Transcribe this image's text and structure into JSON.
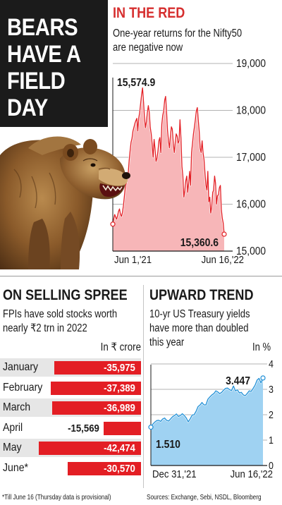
{
  "headline": {
    "lines": [
      "BEARS",
      "HAVE A",
      "FIELD",
      "DAY"
    ]
  },
  "nifty": {
    "title": "IN THE RED",
    "subtitle_lines": [
      "One-year returns for the Nifty50",
      "are negative now"
    ],
    "colors": {
      "title": "#d62f2f",
      "line": "#e31e24",
      "fill": "#f7b6b8"
    }
  },
  "fpi": {
    "title": "ON SELLING SPREE",
    "subtitle_lines": [
      "FPIs have sold stocks worth",
      "nearly ₹2 trn in 2022"
    ],
    "unit": "In ₹ crore",
    "colors": {
      "bar": "#e31e24",
      "shade": "#e6e6e6"
    }
  },
  "yields": {
    "title": "UPWARD TREND",
    "subtitle_lines": [
      "10-yr US Treasury yields",
      "have more than doubled",
      "this year"
    ],
    "unit": "In %",
    "colors": {
      "line": "#1f8fd6",
      "fill": "#9fd2f2"
    }
  },
  "footer": {
    "note": "*Till June 16 (Thursday data is provisional)",
    "sources": "Sources: Exchange, Sebi, NSDL, Bloomberg"
  },
  "chart_data": [
    {
      "id": "nifty",
      "type": "area",
      "title": "IN THE RED",
      "subtitle": "One-year returns for the Nifty50 are negative now",
      "x_tick_labels": [
        "Jun 1,'21",
        "Jun 16,'22"
      ],
      "y_ticks": [
        15000,
        16000,
        17000,
        18000,
        19000
      ],
      "y_tick_labels": [
        "15,000",
        "16,000",
        "17,000",
        "18,000",
        "19,000"
      ],
      "ylim": [
        15000,
        19000
      ],
      "y_axis_side": "right",
      "grid": true,
      "annotations": [
        {
          "label": "15,574.9",
          "position": "start"
        },
        {
          "label": "15,360.6",
          "position": "end"
        }
      ],
      "values": [
        15574.9,
        15690,
        15780,
        15720,
        15680,
        15760,
        15850,
        15900,
        15780,
        15740,
        15820,
        15960,
        16150,
        16360,
        16450,
        16550,
        16640,
        16930,
        17130,
        17320,
        17400,
        17560,
        17640,
        17720,
        17780,
        17830,
        17560,
        17840,
        17950,
        18150,
        18340,
        18480,
        18180,
        17850,
        17630,
        17760,
        17950,
        18100,
        17950,
        17640,
        17500,
        17280,
        17000,
        17380,
        17180,
        16910,
        16980,
        17130,
        17350,
        17420,
        17100,
        17700,
        17890,
        17990,
        18220,
        18300,
        17960,
        17580,
        17350,
        17200,
        17450,
        17650,
        17600,
        17300,
        17100,
        17300,
        17500,
        17450,
        17300,
        17350,
        17800,
        17400,
        16800,
        16600,
        16150,
        16300,
        16500,
        16600,
        16250,
        16450,
        16700,
        16400,
        17100,
        17300,
        17500,
        17650,
        17800,
        17990,
        18060,
        17800,
        17550,
        17200,
        17100,
        17350,
        17100,
        16950,
        16650,
        16410,
        16300,
        16700,
        16050,
        16150,
        15810,
        15940,
        16250,
        16300,
        16600,
        16450,
        16000,
        16180,
        16200,
        16350,
        16400,
        15900,
        15700,
        15600,
        15360.6
      ]
    },
    {
      "id": "fpi",
      "type": "bar",
      "title": "ON SELLING SPREE",
      "subtitle": "FPIs have sold stocks worth nearly ₹2 trn in 2022",
      "unit": "In ₹ crore",
      "categories": [
        "January",
        "February",
        "March",
        "April",
        "May",
        "June*"
      ],
      "values": [
        -35975,
        -37389,
        -36989,
        -15569,
        -42474,
        -30570
      ],
      "value_labels": [
        "-35,975",
        "-37,389",
        "-36,989",
        "-15,569",
        "-42,474",
        "-30,570"
      ]
    },
    {
      "id": "yields",
      "type": "area",
      "title": "UPWARD TREND",
      "subtitle": "10-yr US Treasury yields have more than doubled this year",
      "unit": "In %",
      "x_tick_labels": [
        "Dec 31,'21",
        "Jun 16,'22"
      ],
      "y_ticks": [
        0,
        1,
        2,
        3,
        4
      ],
      "y_tick_labels": [
        "0",
        "1",
        "2",
        "3",
        "4"
      ],
      "ylim": [
        0,
        4
      ],
      "y_axis_side": "right",
      "grid": true,
      "annotations": [
        {
          "label": "1.510",
          "position": "start"
        },
        {
          "label": "3.447",
          "position": "end"
        }
      ],
      "values": [
        1.51,
        1.63,
        1.71,
        1.77,
        1.78,
        1.74,
        1.83,
        1.87,
        1.78,
        1.75,
        1.83,
        1.92,
        1.97,
        2.03,
        1.93,
        1.97,
        2.04,
        1.97,
        1.87,
        1.72,
        1.84,
        1.99,
        2.0,
        2.14,
        2.32,
        2.38,
        2.48,
        2.39,
        2.39,
        2.61,
        2.7,
        2.78,
        2.83,
        2.94,
        2.9,
        2.83,
        2.88,
        2.97,
        3.04,
        3.05,
        2.99,
        2.95,
        3.13,
        2.94,
        2.98,
        2.86,
        2.88,
        2.78,
        2.75,
        2.84,
        2.94,
        2.92,
        3.04,
        3.16,
        3.36,
        3.43,
        3.25,
        3.447
      ]
    }
  ]
}
